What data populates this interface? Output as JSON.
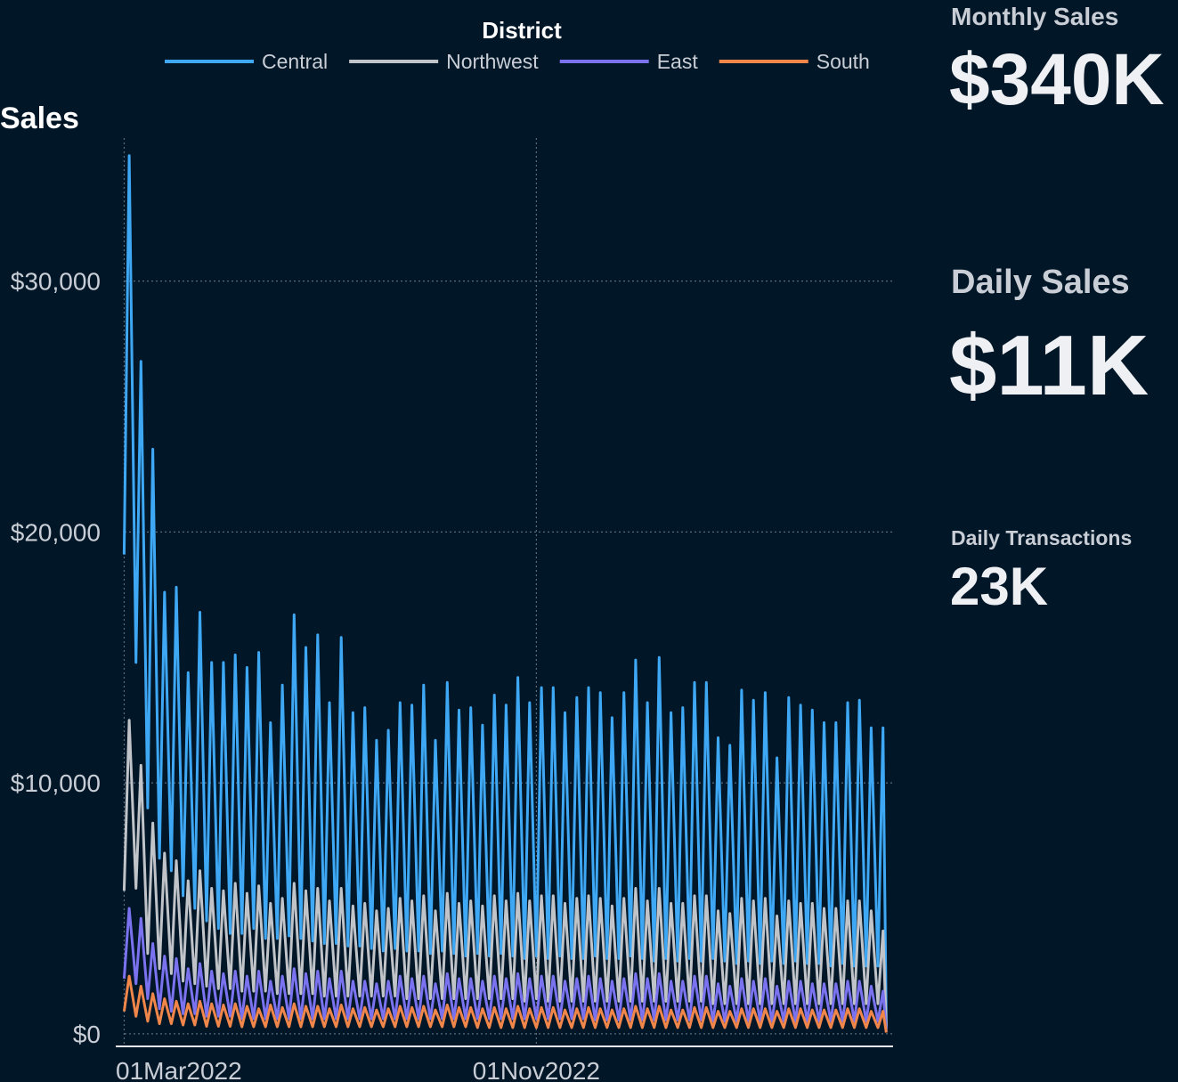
{
  "chart_data": {
    "type": "line",
    "y_label": "Sales",
    "legend_title": "District",
    "x": [
      "2022-03-01",
      "2022-03-04",
      "2022-03-08",
      "2022-03-11",
      "2022-03-15",
      "2022-03-18",
      "2022-03-22",
      "2022-03-25",
      "2022-03-29",
      "2022-04-01",
      "2022-04-05",
      "2022-04-08",
      "2022-04-12",
      "2022-04-15",
      "2022-04-19",
      "2022-04-22",
      "2022-04-26",
      "2022-04-29",
      "2022-05-03",
      "2022-05-06",
      "2022-05-10",
      "2022-05-13",
      "2022-05-17",
      "2022-05-20",
      "2022-05-24",
      "2022-05-27",
      "2022-05-31",
      "2022-06-03",
      "2022-06-07",
      "2022-06-10",
      "2022-06-14",
      "2022-06-17",
      "2022-06-21",
      "2022-06-24",
      "2022-06-28",
      "2022-07-01",
      "2022-07-05",
      "2022-07-08",
      "2022-07-12",
      "2022-07-15",
      "2022-07-19",
      "2022-07-22",
      "2022-07-26",
      "2022-07-29",
      "2022-08-02",
      "2022-08-05",
      "2022-08-09",
      "2022-08-12",
      "2022-08-16",
      "2022-08-19",
      "2022-08-23",
      "2022-08-26",
      "2022-08-30",
      "2022-09-02",
      "2022-09-06",
      "2022-09-09",
      "2022-09-13",
      "2022-09-16",
      "2022-09-20",
      "2022-09-23",
      "2022-09-27",
      "2022-09-30",
      "2022-10-04",
      "2022-10-07",
      "2022-10-11",
      "2022-10-14",
      "2022-10-18",
      "2022-10-21",
      "2022-10-25",
      "2022-10-28",
      "2022-11-01",
      "2022-11-04",
      "2022-11-08",
      "2022-11-11",
      "2022-11-15",
      "2022-11-18",
      "2022-11-22",
      "2022-11-25",
      "2022-11-29",
      "2022-12-02",
      "2022-12-06",
      "2022-12-09",
      "2022-12-13",
      "2022-12-16",
      "2022-12-20",
      "2022-12-23",
      "2022-12-27",
      "2022-12-30",
      "2023-01-03",
      "2023-01-06",
      "2023-01-10",
      "2023-01-13",
      "2023-01-17",
      "2023-01-20",
      "2023-01-24",
      "2023-01-27",
      "2023-01-31",
      "2023-02-03",
      "2023-02-07",
      "2023-02-10",
      "2023-02-14",
      "2023-02-17",
      "2023-02-21",
      "2023-02-24",
      "2023-02-28",
      "2023-03-03",
      "2023-03-07",
      "2023-03-10",
      "2023-03-14",
      "2023-03-17",
      "2023-03-21",
      "2023-03-24",
      "2023-03-28",
      "2023-03-31",
      "2023-04-04",
      "2023-04-07",
      "2023-04-11",
      "2023-04-14",
      "2023-04-18",
      "2023-04-21",
      "2023-04-25",
      "2023-04-28",
      "2023-05-02",
      "2023-05-05",
      "2023-05-09",
      "2023-05-12",
      "2023-05-16",
      "2023-05-19",
      "2023-05-23",
      "2023-05-26",
      "2023-05-28"
    ],
    "series": [
      {
        "name": "Central",
        "color": "#3ea8f5",
        "values": [
          19100,
          35000,
          14800,
          26800,
          9000,
          23300,
          7000,
          17600,
          6500,
          17800,
          5500,
          14400,
          5000,
          16800,
          4500,
          14800,
          4200,
          14800,
          4000,
          15100,
          4000,
          14600,
          4200,
          15200,
          3800,
          12400,
          3800,
          13900,
          3900,
          16700,
          3800,
          15400,
          3700,
          15900,
          3600,
          13200,
          3600,
          15800,
          3500,
          12800,
          3500,
          13000,
          3400,
          11700,
          3300,
          12100,
          3400,
          13200,
          3300,
          13100,
          3300,
          13900,
          3200,
          11700,
          3300,
          14000,
          3200,
          12900,
          3100,
          13000,
          3200,
          12300,
          3100,
          13500,
          3200,
          13100,
          3100,
          14200,
          3000,
          13200,
          3100,
          13800,
          3000,
          13800,
          3100,
          12800,
          3000,
          13400,
          3000,
          13800,
          3100,
          13600,
          3000,
          12600,
          3000,
          13600,
          3100,
          14900,
          3000,
          13200,
          2900,
          15000,
          3000,
          12800,
          2900,
          13000,
          3000,
          14000,
          2900,
          14000,
          3000,
          11800,
          2900,
          11500,
          2800,
          13700,
          2900,
          13300,
          2800,
          13600,
          2900,
          11000,
          2800,
          13400,
          2900,
          13100,
          2800,
          12900,
          2800,
          12400,
          2700,
          12400,
          2800,
          13200,
          2700,
          13300,
          2700,
          12200,
          2700,
          12200,
          300
        ]
      },
      {
        "name": "Northwest",
        "color": "#c0c4c9",
        "values": [
          5700,
          12500,
          5800,
          10700,
          3200,
          8400,
          2600,
          7200,
          2400,
          6900,
          2100,
          6100,
          2000,
          6500,
          1900,
          5800,
          1800,
          5700,
          1800,
          6000,
          1700,
          5600,
          1700,
          5900,
          1700,
          5200,
          1600,
          5400,
          1600,
          6000,
          1600,
          5700,
          1600,
          5800,
          1500,
          5300,
          1500,
          5800,
          1500,
          5100,
          1500,
          5200,
          1500,
          4900,
          1500,
          5000,
          1500,
          5400,
          1400,
          5300,
          1400,
          5500,
          1400,
          4900,
          1400,
          5600,
          1400,
          5200,
          1400,
          5300,
          1400,
          5100,
          1400,
          5500,
          1400,
          5300,
          1400,
          5600,
          1300,
          5300,
          1400,
          5500,
          1300,
          5500,
          1300,
          5200,
          1300,
          5400,
          1300,
          5500,
          1300,
          5400,
          1300,
          5100,
          1300,
          5400,
          1300,
          5800,
          1300,
          5300,
          1300,
          5800,
          1300,
          5200,
          1300,
          5200,
          1300,
          5500,
          1300,
          5500,
          1200,
          4900,
          1200,
          4800,
          1200,
          5400,
          1200,
          5300,
          1200,
          5400,
          1200,
          4700,
          1200,
          5300,
          1200,
          5200,
          1200,
          5200,
          1200,
          5000,
          1200,
          5000,
          1200,
          5300,
          1200,
          5300,
          1200,
          4900,
          1200,
          4100,
          200
        ]
      },
      {
        "name": "East",
        "color": "#7b72f0",
        "values": [
          2200,
          5000,
          2000,
          4600,
          1400,
          3600,
          1000,
          3100,
          900,
          3000,
          800,
          2600,
          800,
          2800,
          700,
          2500,
          700,
          2400,
          700,
          2500,
          600,
          2300,
          600,
          2500,
          600,
          2100,
          600,
          2300,
          600,
          2600,
          600,
          2400,
          600,
          2500,
          600,
          2200,
          600,
          2500,
          600,
          2100,
          600,
          2100,
          600,
          2000,
          600,
          2100,
          600,
          2300,
          600,
          2200,
          600,
          2300,
          600,
          2000,
          600,
          2400,
          600,
          2200,
          600,
          2200,
          600,
          2100,
          600,
          2300,
          600,
          2200,
          600,
          2400,
          600,
          2200,
          600,
          2300,
          600,
          2300,
          600,
          2100,
          600,
          2200,
          600,
          2300,
          550,
          2200,
          550,
          2100,
          550,
          2200,
          550,
          2400,
          550,
          2200,
          550,
          2400,
          550,
          2100,
          550,
          2100,
          550,
          2300,
          550,
          2300,
          500,
          2000,
          500,
          1900,
          500,
          2200,
          500,
          2100,
          500,
          2200,
          500,
          1900,
          500,
          2100,
          500,
          2100,
          500,
          2000,
          500,
          2000,
          500,
          2000,
          500,
          2100,
          500,
          2100,
          500,
          1900,
          500,
          1700,
          100
        ]
      },
      {
        "name": "South",
        "color": "#f0864a",
        "values": [
          900,
          2300,
          700,
          1900,
          500,
          1600,
          400,
          1400,
          400,
          1300,
          350,
          1200,
          350,
          1300,
          300,
          1200,
          300,
          1150,
          300,
          1200,
          280,
          1100,
          280,
          1000,
          280,
          1150,
          280,
          1050,
          280,
          1200,
          280,
          1100,
          280,
          1100,
          280,
          1000,
          280,
          1150,
          280,
          1000,
          280,
          1050,
          280,
          950,
          280,
          1000,
          280,
          1100,
          280,
          1050,
          280,
          1100,
          280,
          950,
          280,
          1150,
          280,
          1050,
          280,
          1050,
          250,
          1000,
          250,
          1050,
          250,
          1000,
          250,
          1100,
          250,
          1000,
          250,
          1050,
          250,
          1050,
          250,
          950,
          250,
          1000,
          250,
          1050,
          250,
          1000,
          250,
          950,
          250,
          1000,
          250,
          1100,
          250,
          1000,
          250,
          1100,
          250,
          950,
          250,
          950,
          250,
          1050,
          250,
          1050,
          250,
          900,
          250,
          900,
          250,
          1000,
          250,
          1000,
          250,
          1000,
          250,
          900,
          250,
          1000,
          250,
          1000,
          250,
          950,
          250,
          950,
          250,
          950,
          250,
          1000,
          250,
          1000,
          250,
          900,
          250,
          900,
          50
        ]
      }
    ],
    "xlim": [
      "2022-02-24",
      "2023-06-01"
    ],
    "xticks": [
      {
        "value": "2022-03-01",
        "label": "01Mar2022"
      },
      {
        "value": "2022-11-01",
        "label": "01Nov2022"
      }
    ],
    "ylim": [
      -500,
      35700
    ],
    "yticks": [
      {
        "value": 0,
        "label": "$0"
      },
      {
        "value": 10000,
        "label": "$10,000"
      },
      {
        "value": 20000,
        "label": "$20,000"
      },
      {
        "value": 30000,
        "label": "$30,000"
      }
    ],
    "grid": true,
    "legend_position": "top"
  },
  "kpis": [
    {
      "label": "Monthly Sales",
      "value": "$340K"
    },
    {
      "label": "Daily Sales",
      "value": "$11K"
    },
    {
      "label": "Daily Transactions",
      "value": "23K"
    }
  ]
}
